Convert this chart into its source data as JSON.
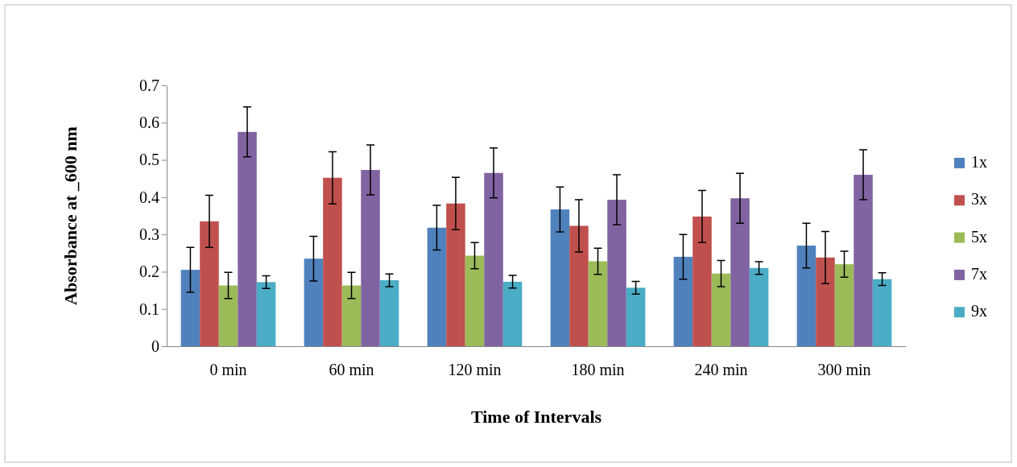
{
  "chart_data": {
    "type": "bar",
    "xlabel": "Time of Intervals",
    "ylabel": "Absorbance at _600 nm",
    "categories": [
      "0 min",
      "60 min",
      "120 min",
      "180 min",
      "240 min",
      "300 min"
    ],
    "series": [
      {
        "name": "1x",
        "color": "#4f81bd",
        "values": [
          0.205,
          0.235,
          0.318,
          0.367,
          0.24,
          0.27
        ],
        "errors": [
          0.06,
          0.06,
          0.06,
          0.06,
          0.06,
          0.06
        ]
      },
      {
        "name": "3x",
        "color": "#c0504d",
        "values": [
          0.335,
          0.452,
          0.383,
          0.323,
          0.348,
          0.238
        ],
        "errors": [
          0.07,
          0.07,
          0.07,
          0.07,
          0.07,
          0.07
        ]
      },
      {
        "name": "5x",
        "color": "#9bbb59",
        "values": [
          0.163,
          0.163,
          0.243,
          0.228,
          0.195,
          0.22
        ],
        "errors": [
          0.035,
          0.035,
          0.035,
          0.035,
          0.035,
          0.035
        ]
      },
      {
        "name": "7x",
        "color": "#8064a2",
        "values": [
          0.575,
          0.473,
          0.465,
          0.393,
          0.397,
          0.46
        ],
        "errors": [
          0.067,
          0.067,
          0.067,
          0.067,
          0.067,
          0.067
        ]
      },
      {
        "name": "9x",
        "color": "#4bacc6",
        "values": [
          0.172,
          0.177,
          0.173,
          0.157,
          0.21,
          0.18
        ],
        "errors": [
          0.017,
          0.017,
          0.017,
          0.017,
          0.017,
          0.017
        ]
      }
    ],
    "ylim": [
      0,
      0.7
    ],
    "yticks": [
      0,
      0.1,
      0.2,
      0.3,
      0.4,
      0.5,
      0.6,
      0.7
    ],
    "grid": false,
    "legend": "right"
  }
}
